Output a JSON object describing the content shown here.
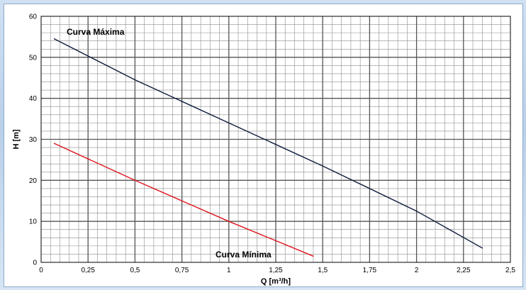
{
  "chart_data": {
    "type": "line",
    "title": "",
    "xlabel": "Q [m³/h]",
    "ylabel": "H [m]",
    "xlim": [
      0,
      2.5
    ],
    "ylim": [
      0,
      60
    ],
    "x_ticks": [
      "0",
      "0,25",
      "0,5",
      "0,75",
      "1",
      "1,25",
      "1,5",
      "1,75",
      "2",
      "2,25",
      "2,5"
    ],
    "y_ticks": [
      "0",
      "10",
      "20",
      "30",
      "40",
      "50",
      "60"
    ],
    "grid": true,
    "series": [
      {
        "name": "Curva Máxima",
        "color": "#0d1b3d",
        "x": [
          0.07,
          0.5,
          1.0,
          1.5,
          2.0,
          2.35
        ],
        "y": [
          54.5,
          44.5,
          34.0,
          23.5,
          12.5,
          3.5
        ]
      },
      {
        "name": "Curva Mínima",
        "color": "#e0141e",
        "x": [
          0.07,
          0.5,
          1.0,
          1.45
        ],
        "y": [
          29.0,
          20.0,
          10.0,
          1.5
        ]
      }
    ]
  }
}
